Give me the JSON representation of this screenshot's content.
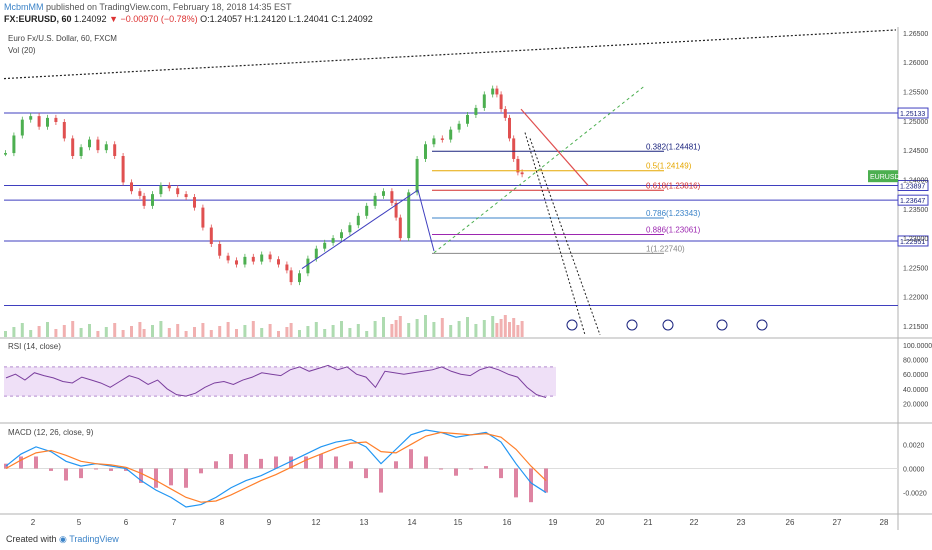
{
  "header": {
    "author": "McbmMM",
    "published_text": "published on TradingView.com, February 18, 2018 14:35 EST",
    "symbol": "FX:EURUSD, 60",
    "last": "1.24092",
    "change": "−0.00970 (−0.78%)",
    "ohlc": "O:1.24057 H:1.24120 L:1.24041 C:1.24092"
  },
  "panes": {
    "main_title": "Euro Fx/U.S. Dollar, 60, FXCM",
    "volume_label": "Vol (20)",
    "rsi_label": "RSI (14, close)",
    "macd_label": "MACD (12, 26, close, 9)"
  },
  "footer": {
    "created": "Created with",
    "brand": "TradingView"
  },
  "colors": {
    "up": "#4caf50",
    "down": "#e05050",
    "fib_0382": "#1a237e",
    "fib_05": "#e6a700",
    "fib_0618": "#d32f2f",
    "fib_0786": "#3b83c8",
    "fib_0886": "#9c27b0",
    "fib_1": "#888888",
    "hline": "#3f3fbf",
    "rsi": "#7b3f9e",
    "rsi_band": "#efe0f7",
    "macd": "#2196f3",
    "signal": "#ff7f2a",
    "hist": "#d0507a"
  },
  "chart_data": {
    "type": "candlestick",
    "x_axis": {
      "ticks": [
        "2",
        "5",
        "6",
        "7",
        "8",
        "9",
        "12",
        "13",
        "14",
        "15",
        "16",
        "19",
        "20",
        "21",
        "22",
        "23",
        "26",
        "27",
        "28"
      ]
    },
    "y_axis": {
      "range": [
        1.2145,
        1.266
      ],
      "ticks": [
        "1.26500",
        "1.26000",
        "1.25500",
        "1.25000",
        "1.24500",
        "1.24000",
        "1.23500",
        "1.23000",
        "1.22500",
        "1.22000",
        "1.21500"
      ]
    },
    "price_path": [
      [
        0,
        1.2445
      ],
      [
        4,
        1.2475
      ],
      [
        8,
        1.2502
      ],
      [
        12,
        1.2508
      ],
      [
        16,
        1.249
      ],
      [
        20,
        1.2505
      ],
      [
        24,
        1.2498
      ],
      [
        28,
        1.247
      ],
      [
        32,
        1.244
      ],
      [
        36,
        1.2455
      ],
      [
        40,
        1.2468
      ],
      [
        44,
        1.245
      ],
      [
        48,
        1.246
      ],
      [
        52,
        1.244
      ],
      [
        56,
        1.2395
      ],
      [
        60,
        1.238
      ],
      [
        64,
        1.2372
      ],
      [
        66,
        1.2355
      ],
      [
        70,
        1.2375
      ],
      [
        74,
        1.239
      ],
      [
        78,
        1.2385
      ],
      [
        82,
        1.2375
      ],
      [
        86,
        1.237
      ],
      [
        90,
        1.2352
      ],
      [
        94,
        1.2318
      ],
      [
        98,
        1.229
      ],
      [
        102,
        1.227
      ],
      [
        106,
        1.2262
      ],
      [
        110,
        1.2255
      ],
      [
        114,
        1.2268
      ],
      [
        118,
        1.226
      ],
      [
        122,
        1.2272
      ],
      [
        126,
        1.2264
      ],
      [
        130,
        1.2255
      ],
      [
        134,
        1.2245
      ],
      [
        136,
        1.2225
      ],
      [
        140,
        1.224
      ],
      [
        144,
        1.2265
      ],
      [
        148,
        1.2282
      ],
      [
        152,
        1.2292
      ],
      [
        156,
        1.23
      ],
      [
        160,
        1.231
      ],
      [
        164,
        1.2322
      ],
      [
        168,
        1.2338
      ],
      [
        172,
        1.2355
      ],
      [
        176,
        1.2372
      ],
      [
        180,
        1.238
      ],
      [
        184,
        1.236
      ],
      [
        186,
        1.2335
      ],
      [
        188,
        1.23
      ],
      [
        192,
        1.2378
      ],
      [
        196,
        1.2435
      ],
      [
        200,
        1.246
      ],
      [
        204,
        1.247
      ],
      [
        208,
        1.2468
      ],
      [
        212,
        1.2485
      ],
      [
        216,
        1.2495
      ],
      [
        220,
        1.251
      ],
      [
        224,
        1.2522
      ],
      [
        228,
        1.2545
      ],
      [
        232,
        1.2555
      ],
      [
        234,
        1.2545
      ],
      [
        236,
        1.252
      ],
      [
        238,
        1.2505
      ],
      [
        240,
        1.247
      ],
      [
        242,
        1.2435
      ],
      [
        244,
        1.2412
      ],
      [
        246,
        1.2409
      ]
    ],
    "horizontal_levels": [
      {
        "label": "1.25133",
        "value": 1.25133
      },
      {
        "label": "1.23897",
        "value": 1.23897
      },
      {
        "label": "1.23647",
        "value": 1.23647
      },
      {
        "label": "1.22951",
        "value": 1.22951
      },
      {
        "label": "",
        "value": 1.2185
      }
    ],
    "fib_levels": [
      {
        "label": "0.382(1.24481)",
        "value": 1.24481,
        "color": "fib_0382"
      },
      {
        "label": "0.5(1.24149)",
        "value": 1.24149,
        "color": "fib_05"
      },
      {
        "label": "0.618(1.23816)",
        "value": 1.23816,
        "color": "fib_0618"
      },
      {
        "label": "0.786(1.23343)",
        "value": 1.23343,
        "color": "fib_0786"
      },
      {
        "label": "0.886(1.23061)",
        "value": 1.23061,
        "color": "fib_0886"
      },
      {
        "label": "1(1.22740)",
        "value": 1.2274,
        "color": "fib_1"
      }
    ],
    "current_price_tag": {
      "label": "EURUSD",
      "value": 1.2409
    },
    "rsi": {
      "range": [
        0,
        100
      ],
      "ticks": [
        "100.0000",
        "80.0000",
        "60.0000",
        "40.0000",
        "20.0000"
      ],
      "band": [
        30,
        70
      ],
      "values": [
        55,
        60,
        52,
        62,
        58,
        55,
        50,
        48,
        56,
        52,
        48,
        42,
        50,
        58,
        54,
        46,
        52,
        40,
        32,
        30,
        34,
        42,
        48,
        50,
        46,
        52,
        56,
        62,
        60,
        58,
        66,
        70,
        64,
        68,
        72,
        66,
        70,
        60,
        56,
        42,
        64,
        62,
        60,
        62,
        64,
        66,
        70,
        64,
        60,
        58,
        66,
        70,
        66,
        60,
        56,
        42,
        32,
        28
      ]
    },
    "macd": {
      "range": [
        -0.0032,
        0.0032
      ],
      "ticks": [
        "0.0020",
        "0.0000",
        "-0.0020"
      ],
      "macd_values": [
        0.0002,
        0.0012,
        0.0018,
        0.0014,
        0.0006,
        0.0002,
        0.0004,
        0.0002,
        0.0,
        -0.001,
        -0.0018,
        -0.0024,
        -0.0032,
        -0.003,
        -0.0024,
        -0.0016,
        -0.001,
        -0.0006,
        0.0,
        0.0006,
        0.0012,
        0.0018,
        0.0022,
        0.0024,
        0.0018,
        0.0004,
        0.0016,
        0.0028,
        0.0032,
        0.003,
        0.0026,
        0.0028,
        0.003,
        0.0022,
        0.0004,
        -0.0012,
        -0.002
      ],
      "signal_values": [
        0.0,
        0.0007,
        0.0013,
        0.0015,
        0.0011,
        0.0006,
        0.0004,
        0.0003,
        0.0001,
        -0.0004,
        -0.001,
        -0.0017,
        -0.0024,
        -0.0028,
        -0.0027,
        -0.0022,
        -0.0016,
        -0.001,
        -0.0005,
        0.0001,
        0.0007,
        0.0012,
        0.0017,
        0.0021,
        0.0022,
        0.0014,
        0.0013,
        0.002,
        0.0027,
        0.003,
        0.0029,
        0.0028,
        0.0029,
        0.0026,
        0.0016,
        0.0002,
        -0.001
      ]
    }
  }
}
